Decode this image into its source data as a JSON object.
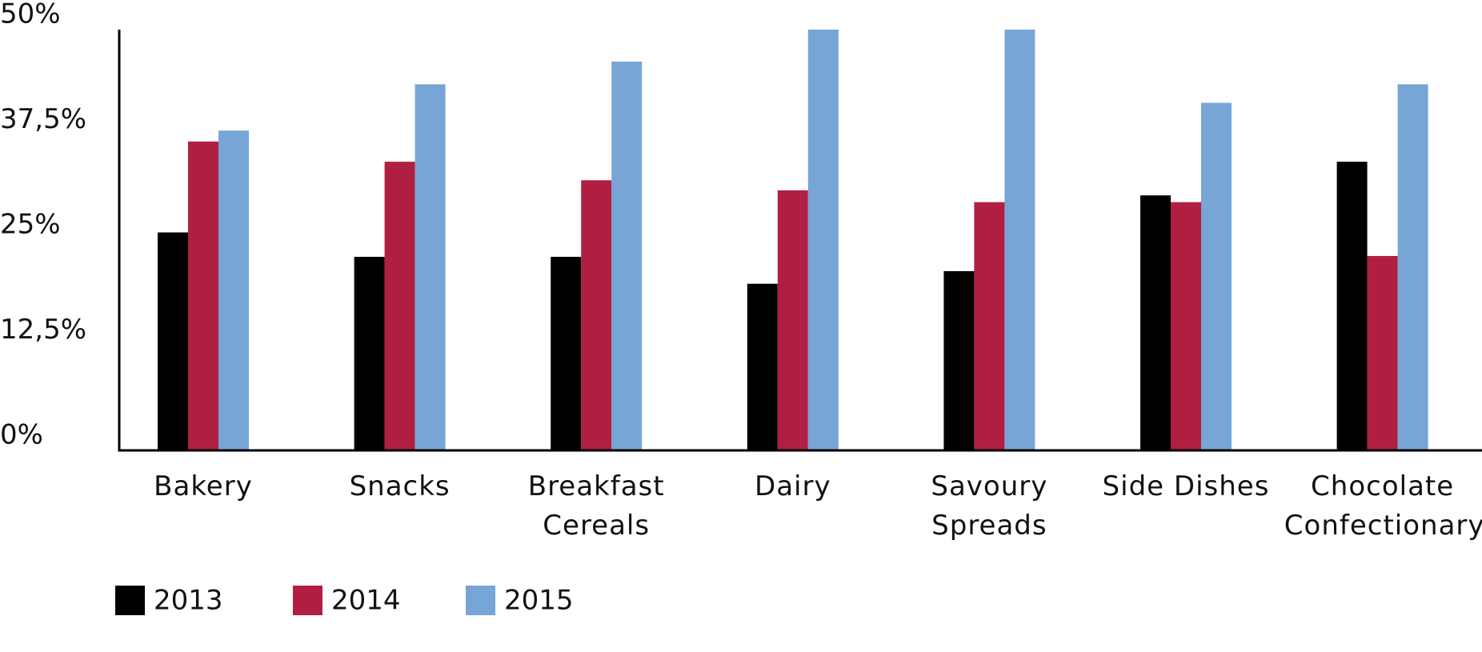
{
  "chart_data": {
    "type": "bar",
    "categories": [
      "Bakery",
      "Snacks",
      "Breakfast Cereals",
      "Dairy",
      "Savoury Spreads",
      "Side Dishes",
      "Chocolate Confectionary"
    ],
    "series": [
      {
        "name": "2013",
        "color": "#000000",
        "values": [
          25.9,
          23.0,
          23.0,
          19.8,
          21.3,
          30.3,
          34.3
        ]
      },
      {
        "name": "2014",
        "color": "#b01f42",
        "values": [
          36.7,
          34.3,
          32.1,
          30.9,
          29.5,
          29.5,
          23.1
        ]
      },
      {
        "name": "2015",
        "color": "#77a5d6",
        "values": [
          38.0,
          43.5,
          46.2,
          50,
          50,
          41.3,
          43.5
        ]
      }
    ],
    "ylim": [
      0,
      50
    ],
    "yticks": [
      {
        "value": 0,
        "label": "0%"
      },
      {
        "value": 12.5,
        "label": "12,5%"
      },
      {
        "value": 25,
        "label": "25%"
      },
      {
        "value": 37.5,
        "label": "37,5%"
      },
      {
        "value": 50,
        "label": "50%"
      }
    ],
    "grid": false
  }
}
